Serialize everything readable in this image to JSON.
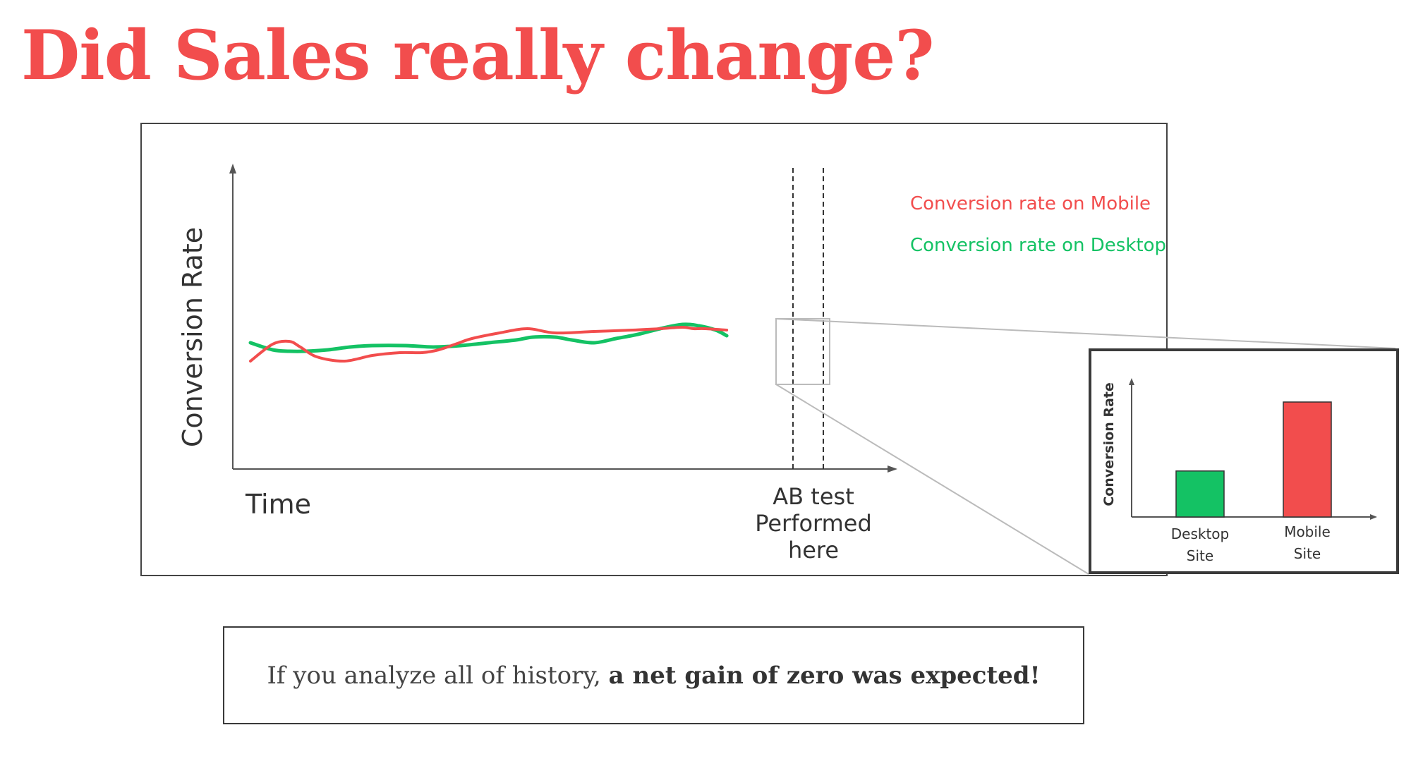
{
  "title": "Did Sales really change?",
  "caption": {
    "normal": "If you analyze all of history, ",
    "bold": "a net gain of zero was expected!"
  },
  "colors": {
    "title": "#f24d4d",
    "mobile": "#f24d4d",
    "desktop": "#14c264",
    "axis": "#555555",
    "zoom": "#bbbbbb"
  },
  "chart_data": [
    {
      "type": "line",
      "xlabel": "Time",
      "ylabel": "Conversion Rate",
      "annotation": [
        "AB test",
        "Performed",
        "here"
      ],
      "series": [
        {
          "name": "Conversion rate on Mobile",
          "color": "#f24d4d",
          "x": [
            0,
            4,
            7,
            9,
            12,
            17,
            22,
            27,
            31,
            34,
            37,
            40,
            45,
            50,
            55,
            62,
            69,
            74,
            78,
            80,
            82,
            86
          ],
          "y": [
            0.23,
            0.35,
            0.37,
            0.33,
            0.26,
            0.23,
            0.27,
            0.29,
            0.29,
            0.31,
            0.35,
            0.39,
            0.43,
            0.46,
            0.43,
            0.44,
            0.45,
            0.46,
            0.47,
            0.46,
            0.46,
            0.45
          ]
        },
        {
          "name": "Conversion rate on Desktop",
          "color": "#14c264",
          "x": [
            0,
            4,
            7,
            10,
            14,
            18,
            22,
            28,
            33,
            38,
            43,
            48,
            51,
            55,
            58,
            62,
            66,
            70,
            74,
            78,
            81,
            84,
            86
          ],
          "y": [
            0.36,
            0.31,
            0.3,
            0.3,
            0.31,
            0.33,
            0.34,
            0.34,
            0.33,
            0.34,
            0.36,
            0.38,
            0.4,
            0.4,
            0.38,
            0.36,
            0.39,
            0.42,
            0.46,
            0.49,
            0.48,
            0.45,
            0.41
          ]
        }
      ]
    },
    {
      "type": "bar",
      "ylabel": "Conversion Rate",
      "categories": [
        [
          "Desktop",
          "Site"
        ],
        [
          "Mobile",
          "Site"
        ]
      ],
      "values": [
        0.4,
        1.0
      ],
      "colors": [
        "#14c264",
        "#f24d4d"
      ]
    }
  ]
}
